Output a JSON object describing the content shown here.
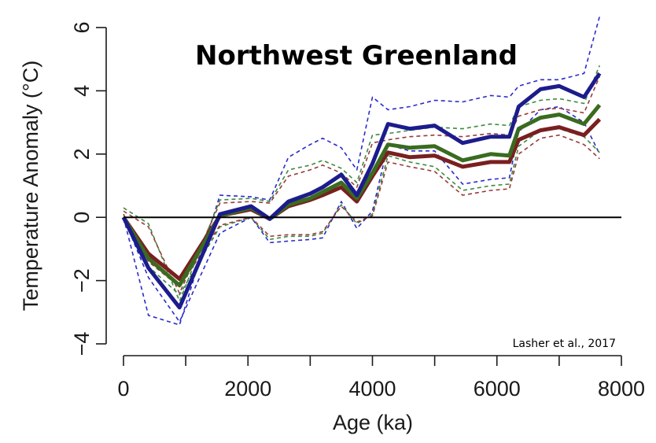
{
  "chart_data": {
    "type": "line",
    "title": "Northwest Greenland",
    "xlabel": "Age (ka)",
    "ylabel": "Temperature Anomaly (°C)",
    "annotation": "Lasher et al., 2017",
    "xlim": [
      0,
      8000
    ],
    "ylim": [
      -4,
      6
    ],
    "xticks": [
      0,
      2000,
      4000,
      6000,
      8000
    ],
    "yticks": [
      -4,
      -2,
      0,
      2,
      4,
      6
    ],
    "reference_line": 0,
    "grid": false,
    "legend": "none",
    "x": [
      0,
      400,
      900,
      1550,
      2050,
      2350,
      2650,
      3000,
      3200,
      3500,
      3750,
      4000,
      4250,
      4600,
      5000,
      5450,
      5900,
      6200,
      6350,
      6700,
      7000,
      7400,
      7650
    ],
    "series": [
      {
        "color": "#1c1c8c",
        "style": "solid",
        "values": [
          0,
          -1.6,
          -2.85,
          0.1,
          0.35,
          -0.05,
          0.5,
          0.75,
          0.95,
          1.35,
          0.7,
          1.7,
          2.95,
          2.8,
          2.9,
          2.35,
          2.55,
          2.55,
          3.5,
          4.05,
          4.15,
          3.8,
          4.55
        ]
      },
      {
        "color": "#3a6b1f",
        "style": "solid",
        "values": [
          0,
          -1.3,
          -2.15,
          0.05,
          0.3,
          -0.05,
          0.4,
          0.6,
          0.8,
          1.1,
          0.6,
          1.4,
          2.3,
          2.2,
          2.25,
          1.8,
          2.0,
          1.95,
          2.8,
          3.15,
          3.25,
          2.95,
          3.55
        ]
      },
      {
        "color": "#7a1f1f",
        "style": "solid",
        "values": [
          0,
          -1.15,
          -1.95,
          0.05,
          0.25,
          -0.05,
          0.35,
          0.55,
          0.7,
          0.95,
          0.5,
          1.3,
          2.05,
          1.9,
          1.95,
          1.6,
          1.75,
          1.75,
          2.45,
          2.75,
          2.85,
          2.6,
          3.1
        ]
      },
      {
        "color": "#2a2acc",
        "style": "dashed",
        "values": [
          0,
          -3.1,
          -3.4,
          0.7,
          0.65,
          0.55,
          1.9,
          2.3,
          2.5,
          2.2,
          1.5,
          3.8,
          3.4,
          3.5,
          3.7,
          3.65,
          3.85,
          3.8,
          4.15,
          4.35,
          4.35,
          4.55,
          6.35
        ]
      },
      {
        "color": "#2a2acc",
        "style": "dashed",
        "values": [
          0,
          -1.9,
          -3.3,
          -0.5,
          0.0,
          -0.8,
          -0.75,
          -0.7,
          -0.65,
          0.5,
          -0.35,
          0.2,
          2.3,
          2.1,
          2.1,
          1.05,
          1.2,
          1.25,
          2.7,
          3.4,
          3.5,
          3.0,
          2.0
        ]
      },
      {
        "color": "#3d8a3d",
        "style": "dashed",
        "values": [
          0.3,
          -0.2,
          -2.65,
          0.55,
          0.6,
          0.5,
          1.5,
          1.65,
          1.8,
          1.55,
          1.1,
          2.6,
          2.65,
          2.75,
          2.85,
          2.8,
          2.95,
          2.9,
          3.5,
          3.7,
          3.75,
          3.6,
          4.8
        ]
      },
      {
        "color": "#3d8a3d",
        "style": "dashed",
        "values": [
          0.1,
          -1.55,
          -2.45,
          -0.3,
          0.0,
          -0.7,
          -0.6,
          -0.6,
          -0.5,
          0.4,
          -0.2,
          0.1,
          1.95,
          1.75,
          1.6,
          0.85,
          1.0,
          1.05,
          2.25,
          2.75,
          2.8,
          2.55,
          2.05
        ]
      },
      {
        "color": "#9a3a3a",
        "style": "dashed",
        "values": [
          0.2,
          -0.3,
          -2.4,
          0.45,
          0.5,
          0.45,
          1.3,
          1.5,
          1.65,
          1.4,
          0.95,
          2.35,
          2.45,
          2.55,
          2.6,
          2.55,
          2.65,
          2.6,
          3.2,
          3.4,
          3.45,
          3.3,
          4.45
        ]
      },
      {
        "color": "#9a3a3a",
        "style": "dashed",
        "values": [
          0.1,
          -1.4,
          -2.2,
          -0.25,
          0.0,
          -0.6,
          -0.55,
          -0.55,
          -0.45,
          0.35,
          -0.15,
          0.05,
          1.75,
          1.6,
          1.45,
          0.7,
          0.85,
          0.9,
          2.0,
          2.5,
          2.6,
          2.3,
          1.85
        ]
      }
    ]
  }
}
